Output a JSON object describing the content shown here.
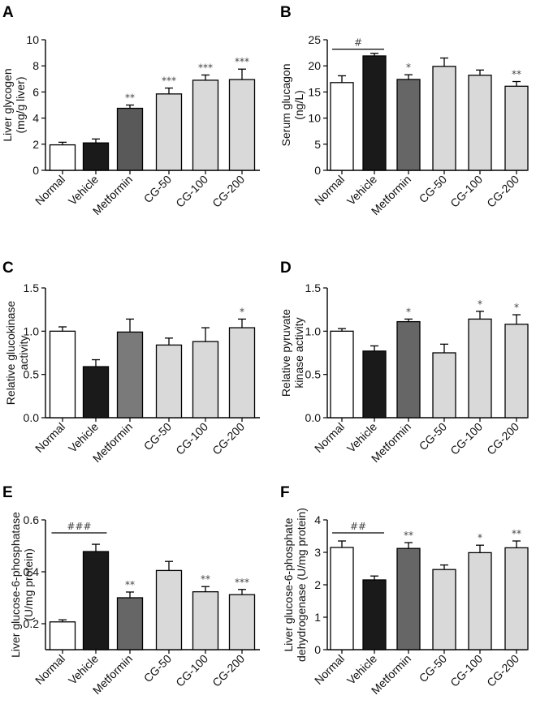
{
  "chart_data": [
    {
      "type": "bar",
      "panel": "A",
      "ylabel": [
        "Liver glycogen",
        "(mg/g liver)"
      ],
      "ylim": [
        0,
        10
      ],
      "yticks": [
        0,
        2,
        4,
        6,
        8,
        10
      ],
      "ytick_labels": [
        "0",
        "2",
        "4",
        "6",
        "8",
        "10"
      ],
      "categories": [
        "Normal",
        "Vehicle",
        "Metformin",
        "CG-50",
        "CG-100",
        "CG-200"
      ],
      "values": [
        1.95,
        2.1,
        4.75,
        5.85,
        6.9,
        6.95
      ],
      "errors": [
        0.2,
        0.3,
        0.25,
        0.45,
        0.4,
        0.8
      ],
      "significance": [
        "",
        "",
        "**",
        "***",
        "***",
        "***"
      ],
      "bracket": null
    },
    {
      "type": "bar",
      "panel": "B",
      "ylabel": [
        "Serum glucagon",
        "(ng/L)"
      ],
      "ylim": [
        0,
        25
      ],
      "yticks": [
        0,
        5,
        10,
        15,
        20,
        25
      ],
      "ytick_labels": [
        "0",
        "5",
        "10",
        "15",
        "20",
        "25"
      ],
      "categories": [
        "Normal",
        "Vehicle",
        "Metformin",
        "CG-50",
        "CG-100",
        "CG-200"
      ],
      "values": [
        16.8,
        21.9,
        17.4,
        19.9,
        18.2,
        16.1
      ],
      "errors": [
        1.3,
        0.5,
        0.9,
        1.6,
        1.0,
        0.9
      ],
      "significance": [
        "",
        "",
        "*",
        "",
        "",
        "**"
      ],
      "bracket": {
        "from": 0,
        "to": 1,
        "label": "#",
        "y": 23.2
      }
    },
    {
      "type": "bar",
      "panel": "C",
      "ylabel": [
        "Relative glucokinase",
        "activity"
      ],
      "ylim": [
        0,
        1.5
      ],
      "yticks": [
        0,
        0.5,
        1.0,
        1.5
      ],
      "ytick_labels": [
        "0.0",
        "0.5",
        "1.0",
        "1.5"
      ],
      "categories": [
        "Normal",
        "Vehicle",
        "Metformin",
        "CG-50",
        "CG-100",
        "CG-200"
      ],
      "values": [
        1.0,
        0.59,
        0.99,
        0.84,
        0.88,
        1.04
      ],
      "errors": [
        0.05,
        0.08,
        0.15,
        0.08,
        0.16,
        0.1
      ],
      "significance": [
        "",
        "",
        "",
        "",
        "",
        "*"
      ],
      "bracket": null
    },
    {
      "type": "bar",
      "panel": "D",
      "ylabel": [
        "Relative pyruvate",
        "kinase activity"
      ],
      "ylim": [
        0,
        1.5
      ],
      "yticks": [
        0,
        0.5,
        1.0,
        1.5
      ],
      "ytick_labels": [
        "0.0",
        "0.5",
        "1.0",
        "1.5"
      ],
      "categories": [
        "Normal",
        "Vehicle",
        "Metformin",
        "CG-50",
        "CG-100",
        "CG-200"
      ],
      "values": [
        1.0,
        0.77,
        1.11,
        0.75,
        1.14,
        1.08
      ],
      "errors": [
        0.03,
        0.06,
        0.03,
        0.1,
        0.09,
        0.11
      ],
      "significance": [
        "",
        "",
        "*",
        "",
        "*",
        "*"
      ],
      "bracket": null
    },
    {
      "type": "bar",
      "panel": "E",
      "ylabel": [
        "Liver glucose-6-phosphatase",
        "(U/mg protein)"
      ],
      "ylim": [
        0.1,
        0.6
      ],
      "yticks": [
        0.2,
        0.4,
        0.6
      ],
      "ytick_labels": [
        "0.2",
        "0.4",
        "0.6"
      ],
      "categories": [
        "Normal",
        "Vehicle",
        "Metformin",
        "CG-50",
        "CG-100",
        "CG-200"
      ],
      "values": [
        0.207,
        0.478,
        0.3,
        0.405,
        0.323,
        0.312
      ],
      "errors": [
        0.008,
        0.028,
        0.022,
        0.035,
        0.02,
        0.02
      ],
      "significance": [
        "",
        "",
        "**",
        "",
        "**",
        "***"
      ],
      "bracket": {
        "from": 0,
        "to": 1,
        "label": "###",
        "y": 0.55
      }
    },
    {
      "type": "bar",
      "panel": "F",
      "ylabel": [
        "Liver glucose-6-phosphate",
        "dehydrogenase (U/mg protein)"
      ],
      "ylim": [
        0,
        4
      ],
      "yticks": [
        0,
        1,
        2,
        3,
        4
      ],
      "ytick_labels": [
        "0",
        "1",
        "2",
        "3",
        "4"
      ],
      "categories": [
        "Normal",
        "Vehicle",
        "Metformin",
        "CG-50",
        "CG-100",
        "CG-200"
      ],
      "values": [
        3.15,
        2.15,
        3.12,
        2.47,
        2.99,
        3.14
      ],
      "errors": [
        0.2,
        0.12,
        0.18,
        0.14,
        0.23,
        0.21
      ],
      "significance": [
        "",
        "",
        "**",
        "",
        "*",
        "**"
      ],
      "bracket": {
        "from": 0,
        "to": 1,
        "label": "##",
        "y": 3.6
      }
    }
  ],
  "colors": {
    "Normal": "#ffffff",
    "Vehicle": "#1a1a1a",
    "Metformin_A": "#595959",
    "Metformin_BDE": "#666666",
    "Metformin_C": "#7a7a7a",
    "CG": "#d9d9d9"
  }
}
